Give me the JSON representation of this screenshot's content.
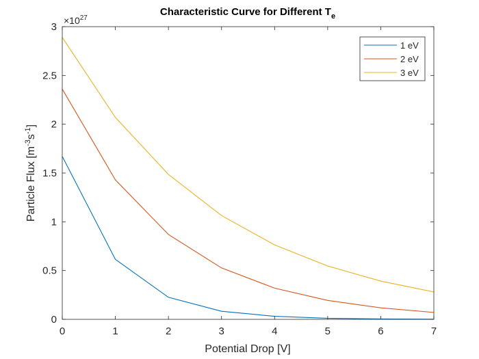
{
  "chart_data": {
    "type": "line",
    "title": "Characteristic Curve for Different T",
    "title_subscript": "e",
    "xlabel": "Potential Drop [V]",
    "ylabel": "Particle Flux [m",
    "ylabel_sup1": "-3",
    "ylabel_mid": "s",
    "ylabel_sup2": "-1",
    "ylabel_end": "]",
    "y_exponent_base": "×10",
    "y_exponent_power": "27",
    "xlim": [
      0,
      7
    ],
    "ylim": [
      0,
      3
    ],
    "x_ticks": [
      0,
      1,
      2,
      3,
      4,
      5,
      6,
      7
    ],
    "y_ticks": [
      0,
      0.5,
      1,
      1.5,
      2,
      2.5,
      3
    ],
    "y_tick_labels": [
      "0",
      "0.5",
      "1",
      "1.5",
      "2",
      "2.5",
      "3"
    ],
    "grid": false,
    "legend_position": "top-right",
    "x": [
      0,
      1,
      2,
      3,
      4,
      5,
      6,
      7
    ],
    "series": [
      {
        "name": "1 eV",
        "color": "#0072BD",
        "values": [
          1.67,
          0.615,
          0.226,
          0.083,
          0.031,
          0.011,
          0.004,
          0.0015
        ]
      },
      {
        "name": "2 eV",
        "color": "#D95319",
        "values": [
          2.36,
          1.43,
          0.87,
          0.527,
          0.32,
          0.194,
          0.118,
          0.071
        ]
      },
      {
        "name": "3 eV",
        "color": "#EDB120",
        "values": [
          2.89,
          2.07,
          1.485,
          1.064,
          0.763,
          0.547,
          0.392,
          0.281
        ]
      }
    ]
  }
}
